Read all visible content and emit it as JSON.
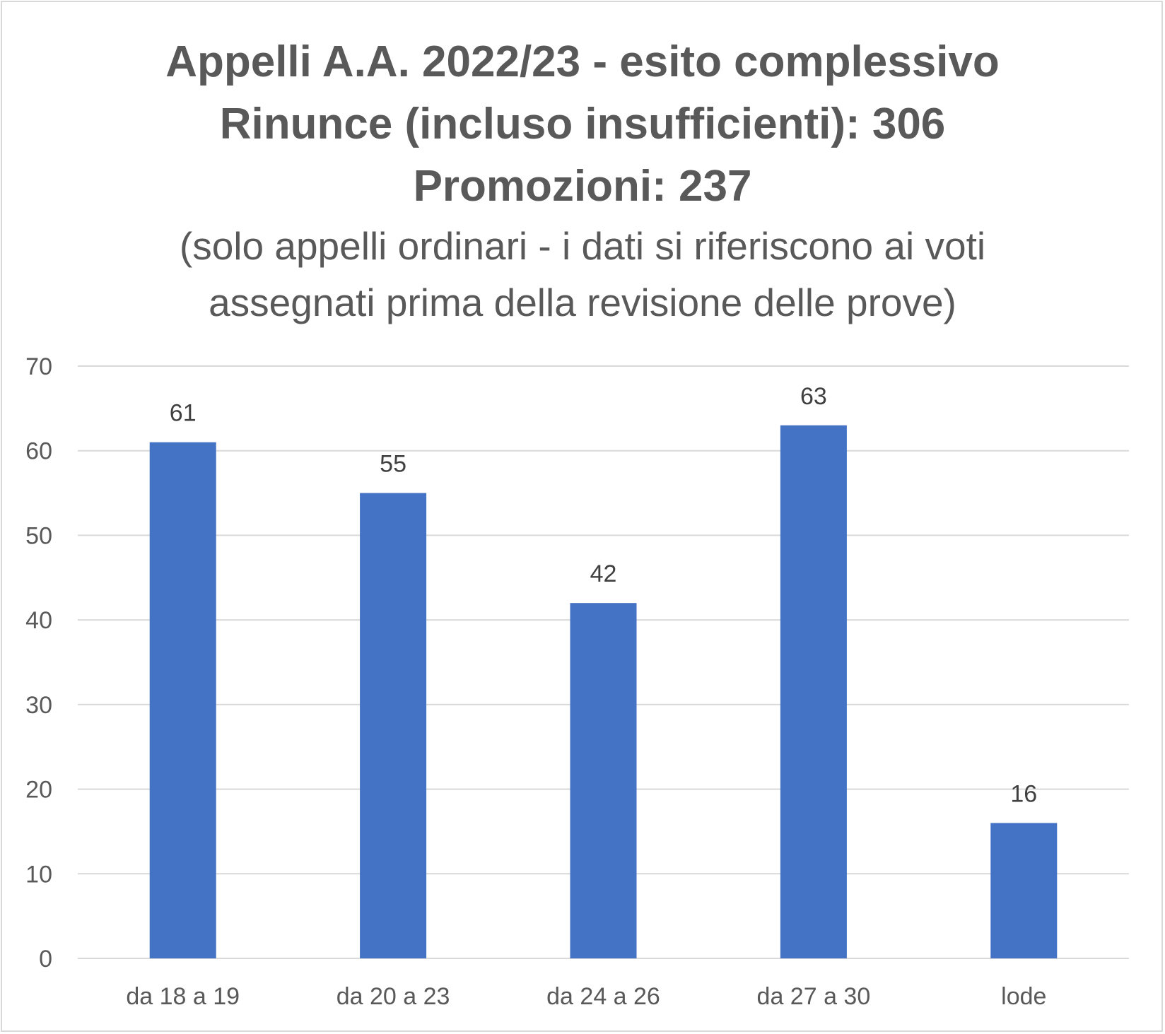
{
  "chart_data": {
    "type": "bar",
    "title": [
      "Appelli A.A. 2022/23 - esito complessivo",
      "Rinunce (incluso insufficienti): 306",
      "Promozioni: 237"
    ],
    "subtitle": [
      "(solo appelli ordinari - i dati si riferiscono ai voti",
      "assegnati prima della revisione delle prove)"
    ],
    "categories": [
      "da 18 a 19",
      "da 20 a 23",
      "da 24 a 26",
      "da 27 a 30",
      "lode"
    ],
    "values": [
      61,
      55,
      42,
      63,
      16
    ],
    "ylim": [
      0,
      70
    ],
    "yticks": [
      0,
      10,
      20,
      30,
      40,
      50,
      60,
      70
    ],
    "xlabel": "",
    "ylabel": "",
    "grid": true,
    "legend": "none",
    "data_labels": true,
    "colors": {
      "bar": "#4472c4",
      "grid": "#d9d9d9",
      "axis_text": "#595959",
      "title_text": "#595959",
      "label_text": "#404040"
    }
  }
}
